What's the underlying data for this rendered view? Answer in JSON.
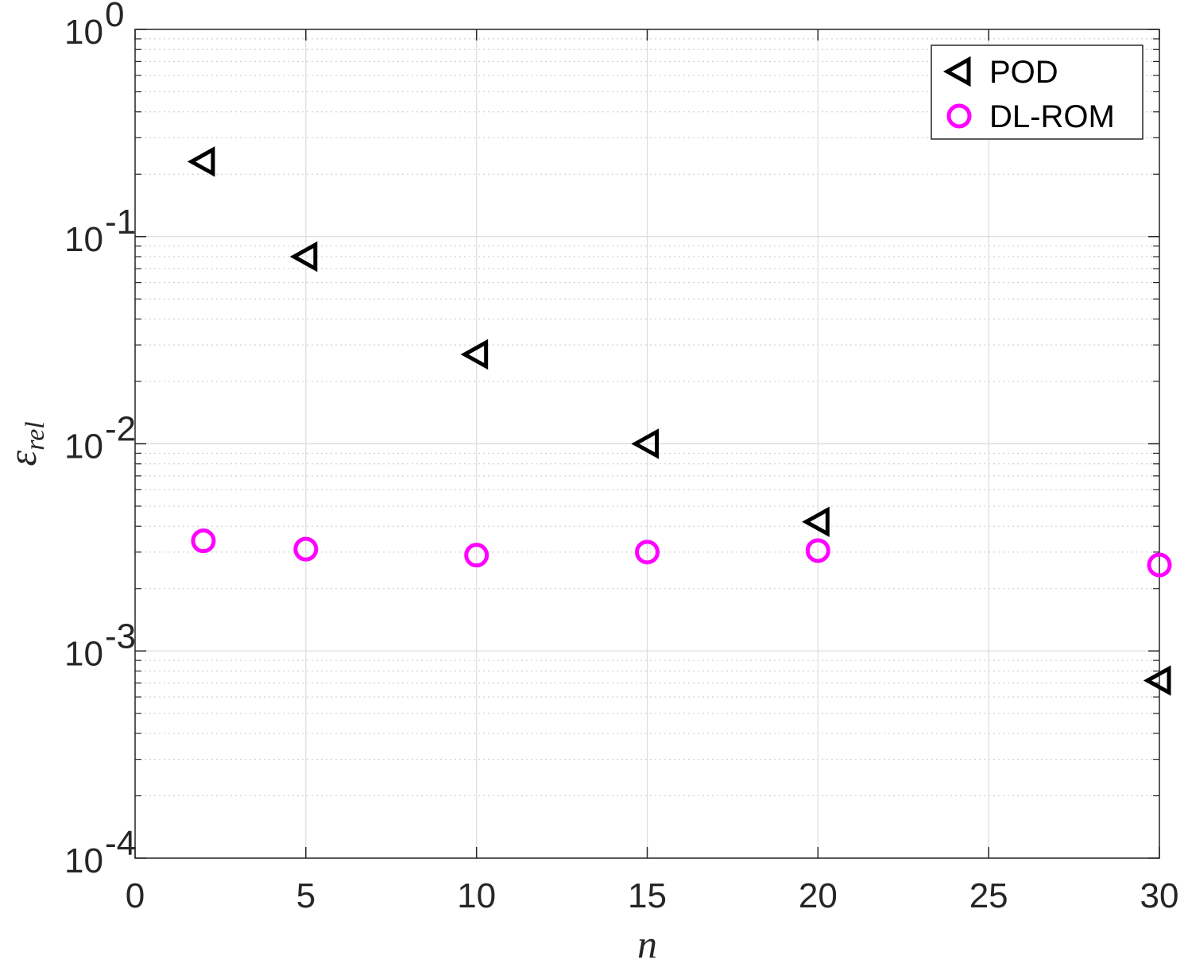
{
  "chart_data": {
    "type": "scatter",
    "xlabel": "n",
    "ylabel": {
      "base": "ε",
      "subscript": "rel"
    },
    "xlim": [
      0,
      30
    ],
    "ylim": [
      0.0001,
      1
    ],
    "yscale": "log",
    "grid": true,
    "minor_grid": true,
    "legend_position": "top-right",
    "x_ticks": [
      "0",
      "5",
      "10",
      "15",
      "20",
      "25",
      "30"
    ],
    "y_ticks": [
      {
        "base": "10",
        "exp": "-4"
      },
      {
        "base": "10",
        "exp": "-3"
      },
      {
        "base": "10",
        "exp": "-2"
      },
      {
        "base": "10",
        "exp": "-1"
      },
      {
        "base": "10",
        "exp": "0"
      }
    ],
    "series": [
      {
        "name": "POD",
        "marker": "triangle-left",
        "color": "#000000",
        "x": [
          2,
          5,
          10,
          15,
          20,
          30
        ],
        "y": [
          0.23,
          0.08,
          0.027,
          0.01,
          0.0042,
          0.00072
        ]
      },
      {
        "name": "DL-ROM",
        "marker": "circle",
        "color": "#ff00ff",
        "x": [
          2,
          5,
          10,
          15,
          20,
          30
        ],
        "y": [
          0.0034,
          0.0031,
          0.0029,
          0.003,
          0.00305,
          0.0026
        ]
      }
    ]
  }
}
